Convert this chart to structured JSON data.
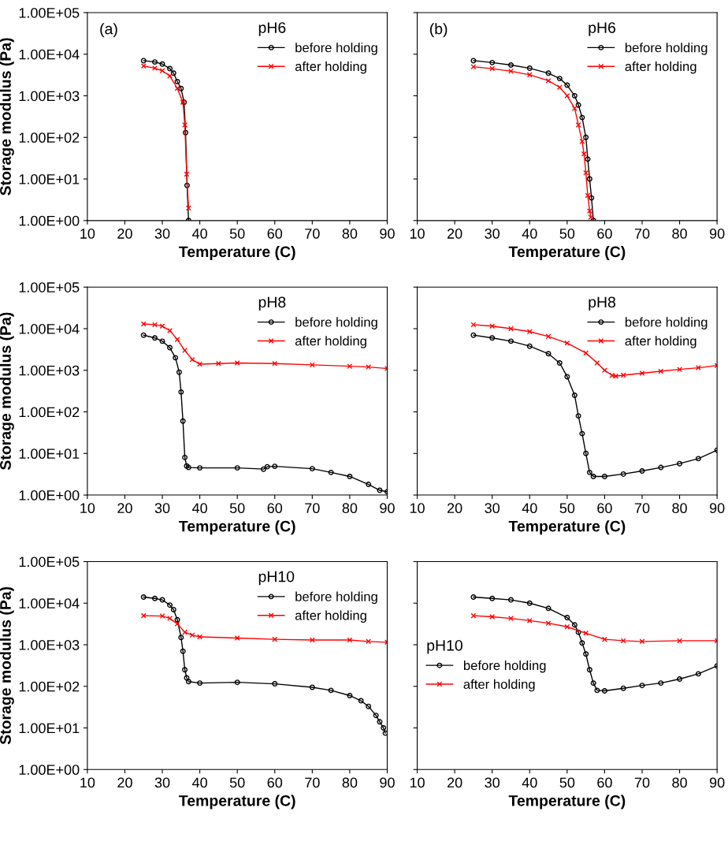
{
  "chart_data": [
    {
      "type": "line",
      "annotations": [
        "(a)"
      ],
      "xlabel": "Temperature (C)",
      "ylabel": "Storage modulus (Pa)",
      "legend_title": "pH6",
      "legend": "top right",
      "log": "y",
      "grid": false,
      "xlim": [
        10,
        90
      ],
      "xticks": [
        10,
        20,
        30,
        40,
        50,
        60,
        70,
        80,
        90
      ],
      "ylim": [
        1,
        100000
      ],
      "yticks": [
        {
          "value": 1,
          "label": "1.00E+00"
        },
        {
          "value": 10,
          "label": "1.00E+01"
        },
        {
          "value": 100,
          "label": "1.00E+02"
        },
        {
          "value": 1000,
          "label": "1.00E+03"
        },
        {
          "value": 10000,
          "label": "1.00E+04"
        },
        {
          "value": 100000,
          "label": "1.00E+05"
        }
      ],
      "series": [
        {
          "name": "before holding",
          "color": "#000000",
          "marker": "circle",
          "x": [
            25,
            28,
            30,
            32,
            33,
            34,
            35,
            35.8,
            36.2,
            36.6,
            37
          ],
          "values": [
            7000,
            6500,
            5800,
            4500,
            3500,
            2200,
            1500,
            700,
            130,
            7,
            1
          ]
        },
        {
          "name": "after holding",
          "color": "#ff0000",
          "marker": "cross",
          "x": [
            25,
            28,
            30,
            32,
            34,
            35.5,
            36,
            36.5,
            37
          ],
          "values": [
            5200,
            4600,
            4000,
            3000,
            1500,
            700,
            200,
            13,
            2
          ]
        }
      ]
    },
    {
      "type": "line",
      "annotations": [
        "(b)"
      ],
      "xlabel": "Temperature (C)",
      "legend_title": "pH6",
      "legend": "top right",
      "log": "y",
      "grid": false,
      "tick_labels": "x",
      "xlim": [
        10,
        90
      ],
      "xticks": [
        10,
        20,
        30,
        40,
        50,
        60,
        70,
        80,
        90
      ],
      "ylim": [
        1,
        100000
      ],
      "yticks": [
        1,
        10,
        100,
        1000,
        10000,
        100000
      ],
      "series": [
        {
          "name": "before holding",
          "color": "#000000",
          "marker": "circle",
          "x": [
            25,
            30,
            35,
            40,
            45,
            48,
            50,
            52,
            53,
            54,
            55,
            55.5,
            56,
            56.5,
            57
          ],
          "values": [
            7000,
            6300,
            5500,
            4600,
            3500,
            2600,
            1800,
            1000,
            600,
            300,
            100,
            30,
            10,
            3.5,
            1
          ]
        },
        {
          "name": "after holding",
          "color": "#ff0000",
          "marker": "cross",
          "x": [
            25,
            30,
            35,
            40,
            45,
            48,
            50,
            52,
            53,
            54,
            54.5,
            55,
            55.5,
            56,
            56.3
          ],
          "values": [
            5000,
            4500,
            3900,
            3200,
            2300,
            1600,
            1000,
            500,
            200,
            80,
            40,
            14,
            4,
            1.7,
            1.2
          ]
        }
      ]
    },
    {
      "type": "line",
      "xlabel": "Temperature (C)",
      "ylabel": "Storage modulus (Pa)",
      "legend_title": "pH8",
      "legend": "top right",
      "log": "y",
      "grid": false,
      "xlim": [
        10,
        90
      ],
      "xticks": [
        10,
        20,
        30,
        40,
        50,
        60,
        70,
        80,
        90
      ],
      "ylim": [
        1,
        100000
      ],
      "yticks": [
        {
          "value": 1,
          "label": "1.00E+00"
        },
        {
          "value": 10,
          "label": "1.00E+01"
        },
        {
          "value": 100,
          "label": "1.00E+02"
        },
        {
          "value": 1000,
          "label": "1.00E+03"
        },
        {
          "value": 10000,
          "label": "1.00E+04"
        },
        {
          "value": 100000,
          "label": "1.00E+05"
        }
      ],
      "series": [
        {
          "name": "before holding",
          "color": "#000000",
          "marker": "circle",
          "x": [
            25,
            28,
            30,
            32,
            33.5,
            34.5,
            35,
            35.5,
            36,
            36.5,
            37,
            40,
            50,
            57,
            58,
            60,
            70,
            75,
            80,
            85,
            88,
            90
          ],
          "values": [
            7000,
            6000,
            5000,
            3500,
            2000,
            900,
            300,
            60,
            8,
            5,
            4.6,
            4.5,
            4.5,
            4.2,
            4.8,
            4.9,
            4.3,
            3.5,
            2.8,
            1.8,
            1.3,
            1.2
          ]
        },
        {
          "name": "after holding",
          "color": "#ff0000",
          "marker": "cross",
          "x": [
            25,
            28,
            30,
            32,
            34,
            36,
            38,
            40,
            45,
            50,
            60,
            70,
            80,
            85,
            90
          ],
          "values": [
            13000,
            12500,
            11500,
            9000,
            5500,
            3000,
            1800,
            1400,
            1450,
            1500,
            1450,
            1350,
            1250,
            1200,
            1100
          ]
        }
      ]
    },
    {
      "type": "line",
      "xlabel": "Temperature (C)",
      "legend_title": "pH8",
      "legend": "top right",
      "log": "y",
      "grid": false,
      "tick_labels": "x",
      "xlim": [
        10,
        90
      ],
      "xticks": [
        10,
        20,
        30,
        40,
        50,
        60,
        70,
        80,
        90
      ],
      "ylim": [
        1,
        100000
      ],
      "yticks": [
        1,
        10,
        100,
        1000,
        10000,
        100000
      ],
      "series": [
        {
          "name": "before holding",
          "color": "#000000",
          "marker": "circle",
          "x": [
            25,
            30,
            35,
            40,
            45,
            48,
            50,
            52,
            53,
            54,
            55,
            56,
            57,
            60,
            65,
            70,
            75,
            80,
            85,
            90
          ],
          "values": [
            7000,
            6000,
            5000,
            3800,
            2500,
            1500,
            700,
            250,
            80,
            30,
            10,
            3.5,
            2.8,
            2.8,
            3.2,
            3.8,
            4.6,
            5.7,
            7.5,
            12
          ]
        },
        {
          "name": "after holding",
          "color": "#ff0000",
          "marker": "cross",
          "x": [
            25,
            30,
            35,
            40,
            45,
            50,
            55,
            58,
            60,
            62,
            63,
            65,
            70,
            75,
            80,
            85,
            90
          ],
          "values": [
            12500,
            11500,
            10000,
            8500,
            6500,
            4500,
            2600,
            1500,
            1000,
            750,
            720,
            760,
            850,
            950,
            1050,
            1150,
            1300
          ]
        }
      ]
    },
    {
      "type": "line",
      "xlabel": "Temperature (C)",
      "ylabel": "Storage modulus (Pa)",
      "legend_title": "pH10",
      "legend": "top right",
      "log": "y",
      "grid": false,
      "xlim": [
        10,
        90
      ],
      "xticks": [
        10,
        20,
        30,
        40,
        50,
        60,
        70,
        80,
        90
      ],
      "ylim": [
        1,
        100000
      ],
      "yticks": [
        {
          "value": 1,
          "label": "1.00E+00"
        },
        {
          "value": 10,
          "label": "1.00E+01"
        },
        {
          "value": 100,
          "label": "1.00E+02"
        },
        {
          "value": 1000,
          "label": "1.00E+03"
        },
        {
          "value": 10000,
          "label": "1.00E+04"
        },
        {
          "value": 100000,
          "label": "1.00E+05"
        }
      ],
      "series": [
        {
          "name": "before holding",
          "color": "#000000",
          "marker": "circle",
          "x": [
            25,
            28,
            30,
            32,
            33,
            34,
            35,
            35.5,
            36,
            36.5,
            37,
            40,
            50,
            60,
            70,
            75,
            80,
            83,
            85,
            87,
            88,
            89,
            89.5
          ],
          "values": [
            14000,
            13000,
            12000,
            9000,
            7000,
            4000,
            1500,
            700,
            250,
            160,
            130,
            120,
            125,
            115,
            95,
            80,
            60,
            45,
            33,
            20,
            14,
            10,
            7.5
          ]
        },
        {
          "name": "after holding",
          "color": "#ff0000",
          "marker": "cross",
          "x": [
            25,
            30,
            32,
            34,
            36,
            38,
            40,
            50,
            60,
            70,
            80,
            85,
            90
          ],
          "values": [
            5000,
            4900,
            4300,
            3200,
            2000,
            1700,
            1550,
            1450,
            1350,
            1300,
            1300,
            1200,
            1150
          ]
        }
      ]
    },
    {
      "type": "line",
      "xlabel": "Temperature (C)",
      "legend_title": "pH10",
      "legend": "left",
      "log": "y",
      "grid": false,
      "tick_labels": "x",
      "xlim": [
        10,
        90
      ],
      "xticks": [
        10,
        20,
        30,
        40,
        50,
        60,
        70,
        80,
        90
      ],
      "ylim": [
        1,
        100000
      ],
      "yticks": [
        1,
        10,
        100,
        1000,
        10000,
        100000
      ],
      "series": [
        {
          "name": "before holding",
          "color": "#000000",
          "marker": "circle",
          "x": [
            25,
            30,
            35,
            40,
            45,
            50,
            52,
            53,
            54,
            55,
            56,
            57,
            58,
            60,
            65,
            70,
            75,
            80,
            85,
            90
          ],
          "values": [
            14000,
            13000,
            12000,
            10000,
            7500,
            4500,
            3000,
            2000,
            1100,
            600,
            250,
            120,
            80,
            78,
            90,
            105,
            120,
            150,
            200,
            310
          ]
        },
        {
          "name": "after holding",
          "color": "#ff0000",
          "marker": "cross",
          "x": [
            25,
            30,
            35,
            40,
            45,
            50,
            55,
            60,
            65,
            70,
            80,
            90
          ],
          "values": [
            5000,
            4700,
            4300,
            3800,
            3300,
            2700,
            1900,
            1350,
            1250,
            1200,
            1250,
            1250
          ]
        }
      ]
    }
  ]
}
